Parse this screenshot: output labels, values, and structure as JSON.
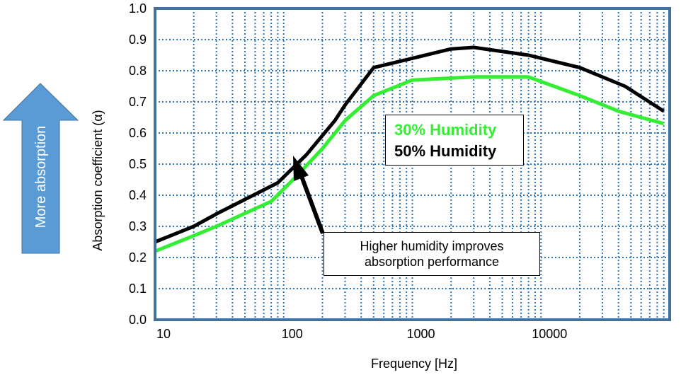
{
  "side_arrow": {
    "label": "More absorption",
    "color": "#5b9bd5"
  },
  "annotation": {
    "line1": "Higher humidity improves",
    "line2": "absorption performance"
  },
  "chart_data": {
    "type": "line",
    "xlabel": "Frequency [Hz]",
    "ylabel": "Absorption coefficient (α)",
    "x_scale": "log",
    "xlim": [
      10,
      100000
    ],
    "ylim": [
      0,
      1.0
    ],
    "x_ticks": [
      "10",
      "100",
      "1000",
      "10000"
    ],
    "y_ticks": [
      "0.0",
      "0.1",
      "0.2",
      "0.3",
      "0.4",
      "0.5",
      "0.6",
      "0.7",
      "0.8",
      "0.9",
      "1.0"
    ],
    "grid": true,
    "legend_position": "center",
    "series": [
      {
        "name": "30% Humidity",
        "color": "#33ee33",
        "points": [
          [
            10,
            0.22
          ],
          [
            20,
            0.27
          ],
          [
            30,
            0.3
          ],
          [
            80,
            0.38
          ],
          [
            125,
            0.46
          ],
          [
            200,
            0.55
          ],
          [
            300,
            0.64
          ],
          [
            500,
            0.72
          ],
          [
            1000,
            0.77
          ],
          [
            3000,
            0.78
          ],
          [
            8000,
            0.78
          ],
          [
            20000,
            0.72
          ],
          [
            40000,
            0.67
          ],
          [
            90000,
            0.63
          ]
        ]
      },
      {
        "name": "50% Humidity",
        "color": "#000000",
        "points": [
          [
            10,
            0.25
          ],
          [
            20,
            0.3
          ],
          [
            30,
            0.34
          ],
          [
            90,
            0.44
          ],
          [
            150,
            0.53
          ],
          [
            250,
            0.64
          ],
          [
            300,
            0.69
          ],
          [
            500,
            0.81
          ],
          [
            1000,
            0.84
          ],
          [
            2000,
            0.87
          ],
          [
            3000,
            0.875
          ],
          [
            8000,
            0.85
          ],
          [
            20000,
            0.81
          ],
          [
            45000,
            0.75
          ],
          [
            90000,
            0.67
          ]
        ]
      }
    ]
  }
}
